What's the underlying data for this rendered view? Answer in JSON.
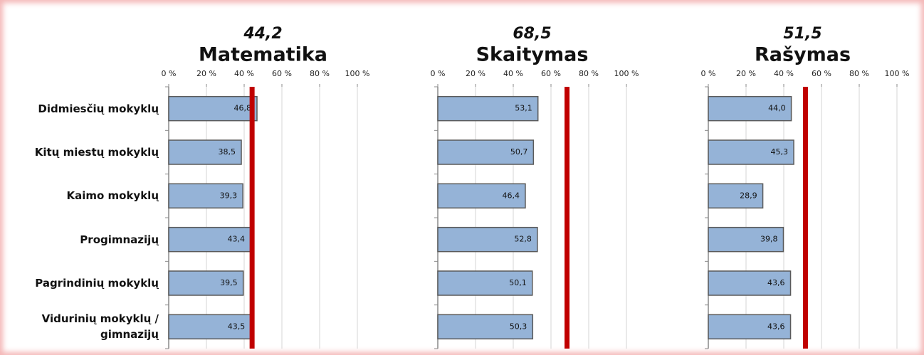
{
  "chart_data": [
    {
      "type": "bar",
      "orientation": "horizontal",
      "title": "Matematika",
      "reference": {
        "value": 44.2,
        "label": "44,2"
      },
      "categories": [
        "Didmiesčių mokyklų",
        "Kitų miestų mokyklų",
        "Kaimo mokyklų",
        "Progimnazijų",
        "Pagrindinių mokyklų",
        "Vidurinių mokyklų / gimnazijų"
      ],
      "values": [
        46.8,
        38.5,
        39.3,
        43.4,
        39.5,
        43.5
      ],
      "value_labels": [
        "46,8",
        "38,5",
        "39,3",
        "43,4",
        "39,5",
        "43,5"
      ],
      "xlim": [
        0,
        100
      ],
      "xticks": [
        {
          "value": 0,
          "label": "0 %"
        },
        {
          "value": 20,
          "label": "20 %"
        },
        {
          "value": 40,
          "label": "40 %"
        },
        {
          "value": 60,
          "label": "60 %"
        },
        {
          "value": 80,
          "label": "80 %"
        },
        {
          "value": 100,
          "label": "100 %"
        }
      ],
      "color": "#95b3d7",
      "reference_color": "#c00000",
      "grid": true
    },
    {
      "type": "bar",
      "orientation": "horizontal",
      "title": "Skaitymas",
      "reference": {
        "value": 68.5,
        "label": "68,5"
      },
      "values": [
        53.1,
        50.7,
        46.4,
        52.8,
        50.1,
        50.3
      ],
      "value_labels": [
        "53,1",
        "50,7",
        "46,4",
        "52,8",
        "50,1",
        "50,3"
      ],
      "xlim": [
        0,
        100
      ],
      "xticks": [
        {
          "value": 0,
          "label": "0 %"
        },
        {
          "value": 20,
          "label": "20 %"
        },
        {
          "value": 40,
          "label": "40 %"
        },
        {
          "value": 60,
          "label": "60 %"
        },
        {
          "value": 80,
          "label": "80 %"
        },
        {
          "value": 100,
          "label": "100 %"
        }
      ],
      "color": "#95b3d7",
      "reference_color": "#c00000",
      "grid": true
    },
    {
      "type": "bar",
      "orientation": "horizontal",
      "title": "Rašymas",
      "reference": {
        "value": 51.5,
        "label": "51,5"
      },
      "values": [
        44.0,
        45.3,
        28.9,
        39.8,
        43.6,
        43.6
      ],
      "value_labels": [
        "44,0",
        "45,3",
        "28,9",
        "39,8",
        "43,6",
        "43,6"
      ],
      "xlim": [
        0,
        100
      ],
      "xticks": [
        {
          "value": 0,
          "label": "0 %"
        },
        {
          "value": 20,
          "label": "20 %"
        },
        {
          "value": 40,
          "label": "40 %"
        },
        {
          "value": 60,
          "label": "60 %"
        },
        {
          "value": 80,
          "label": "80 %"
        },
        {
          "value": 100,
          "label": "100 %"
        }
      ],
      "color": "#95b3d7",
      "reference_color": "#c00000",
      "grid": true
    }
  ]
}
